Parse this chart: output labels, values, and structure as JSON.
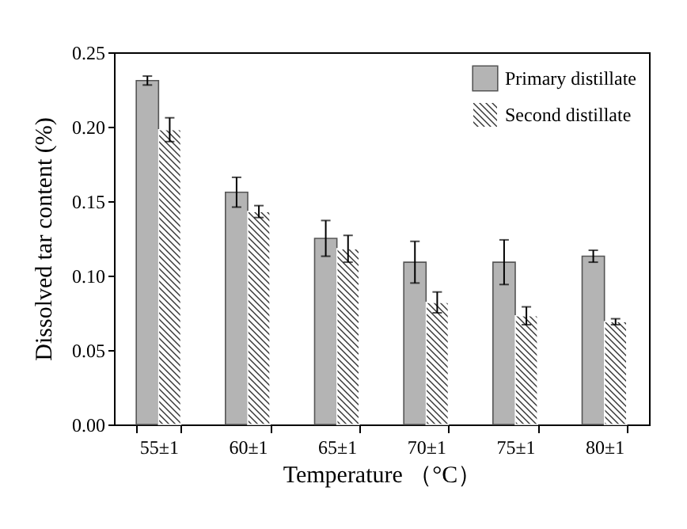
{
  "chart_data": {
    "type": "bar",
    "xlabel": "Temperature （°C）",
    "ylabel": "Dissolved tar content (%)",
    "categories": [
      "55±1",
      "60±1",
      "65±1",
      "70±1",
      "75±1",
      "80±1"
    ],
    "series": [
      {
        "name": "Primary distillate",
        "color": "#b4b4b4",
        "values": [
          0.231,
          0.156,
          0.125,
          0.109,
          0.109,
          0.113
        ],
        "errors": [
          0.003,
          0.01,
          0.012,
          0.014,
          0.015,
          0.004
        ]
      },
      {
        "name": "Second distillate",
        "color": "#ffffff",
        "values": [
          0.198,
          0.143,
          0.118,
          0.082,
          0.073,
          0.069
        ],
        "errors": [
          0.008,
          0.004,
          0.009,
          0.007,
          0.006,
          0.002
        ]
      }
    ],
    "ylim": [
      0,
      0.25
    ],
    "yticks": [
      {
        "value": 0,
        "label": "0.00"
      },
      {
        "value": 0.05,
        "label": "0.05"
      },
      {
        "value": 0.1,
        "label": "0.10"
      },
      {
        "value": 0.15,
        "label": "0.15"
      },
      {
        "value": 0.2,
        "label": "0.20"
      },
      {
        "value": 0.25,
        "label": "0.25"
      }
    ],
    "grid": false,
    "legend": "top right"
  }
}
